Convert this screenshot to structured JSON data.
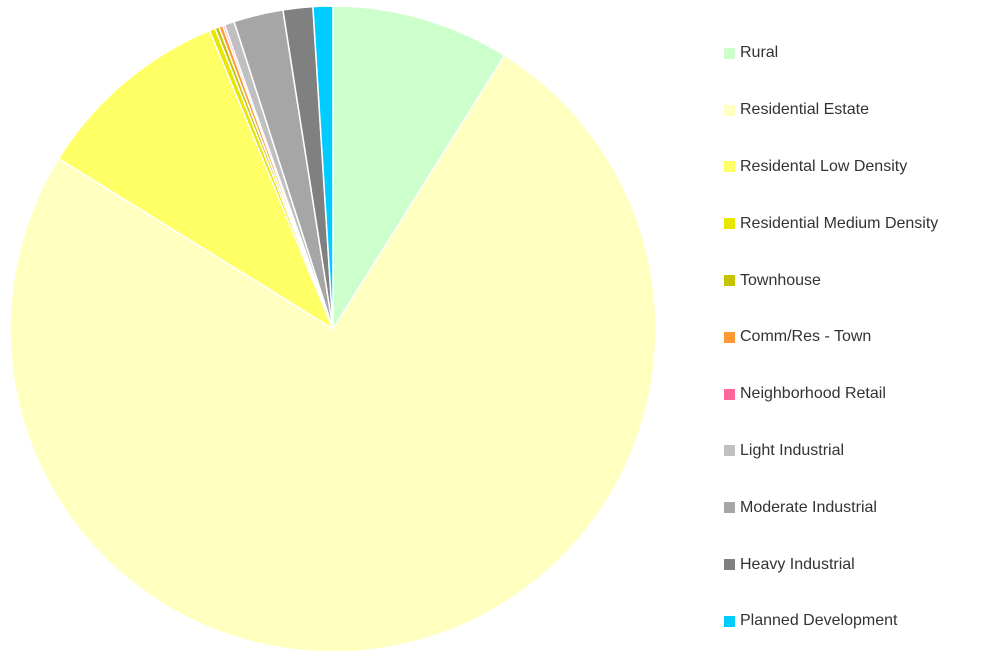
{
  "chart_data": {
    "type": "pie",
    "title": "",
    "start_angle_deg": 0,
    "direction": "clockwise",
    "legend_position": "right",
    "categories": [
      "Rural",
      "Residential Estate",
      "Residental Low Density",
      "Residential Medium Density",
      "Townhouse",
      "Comm/Res - Town",
      "Neighborhood Retail",
      "Light Industrial",
      "Moderate Industrial",
      "Heavy Industrial",
      "Planned Development"
    ],
    "values": [
      9.0,
      75.6,
      10.0,
      0.3,
      0.2,
      0.2,
      0.1,
      0.5,
      2.5,
      1.5,
      1.0
    ],
    "colors": [
      "#ccffcc",
      "#ffffc0",
      "#ffff66",
      "#e6e600",
      "#c4c400",
      "#ff9933",
      "#ff6699",
      "#c0c0c0",
      "#a6a6a6",
      "#808080",
      "#00ccff"
    ]
  }
}
